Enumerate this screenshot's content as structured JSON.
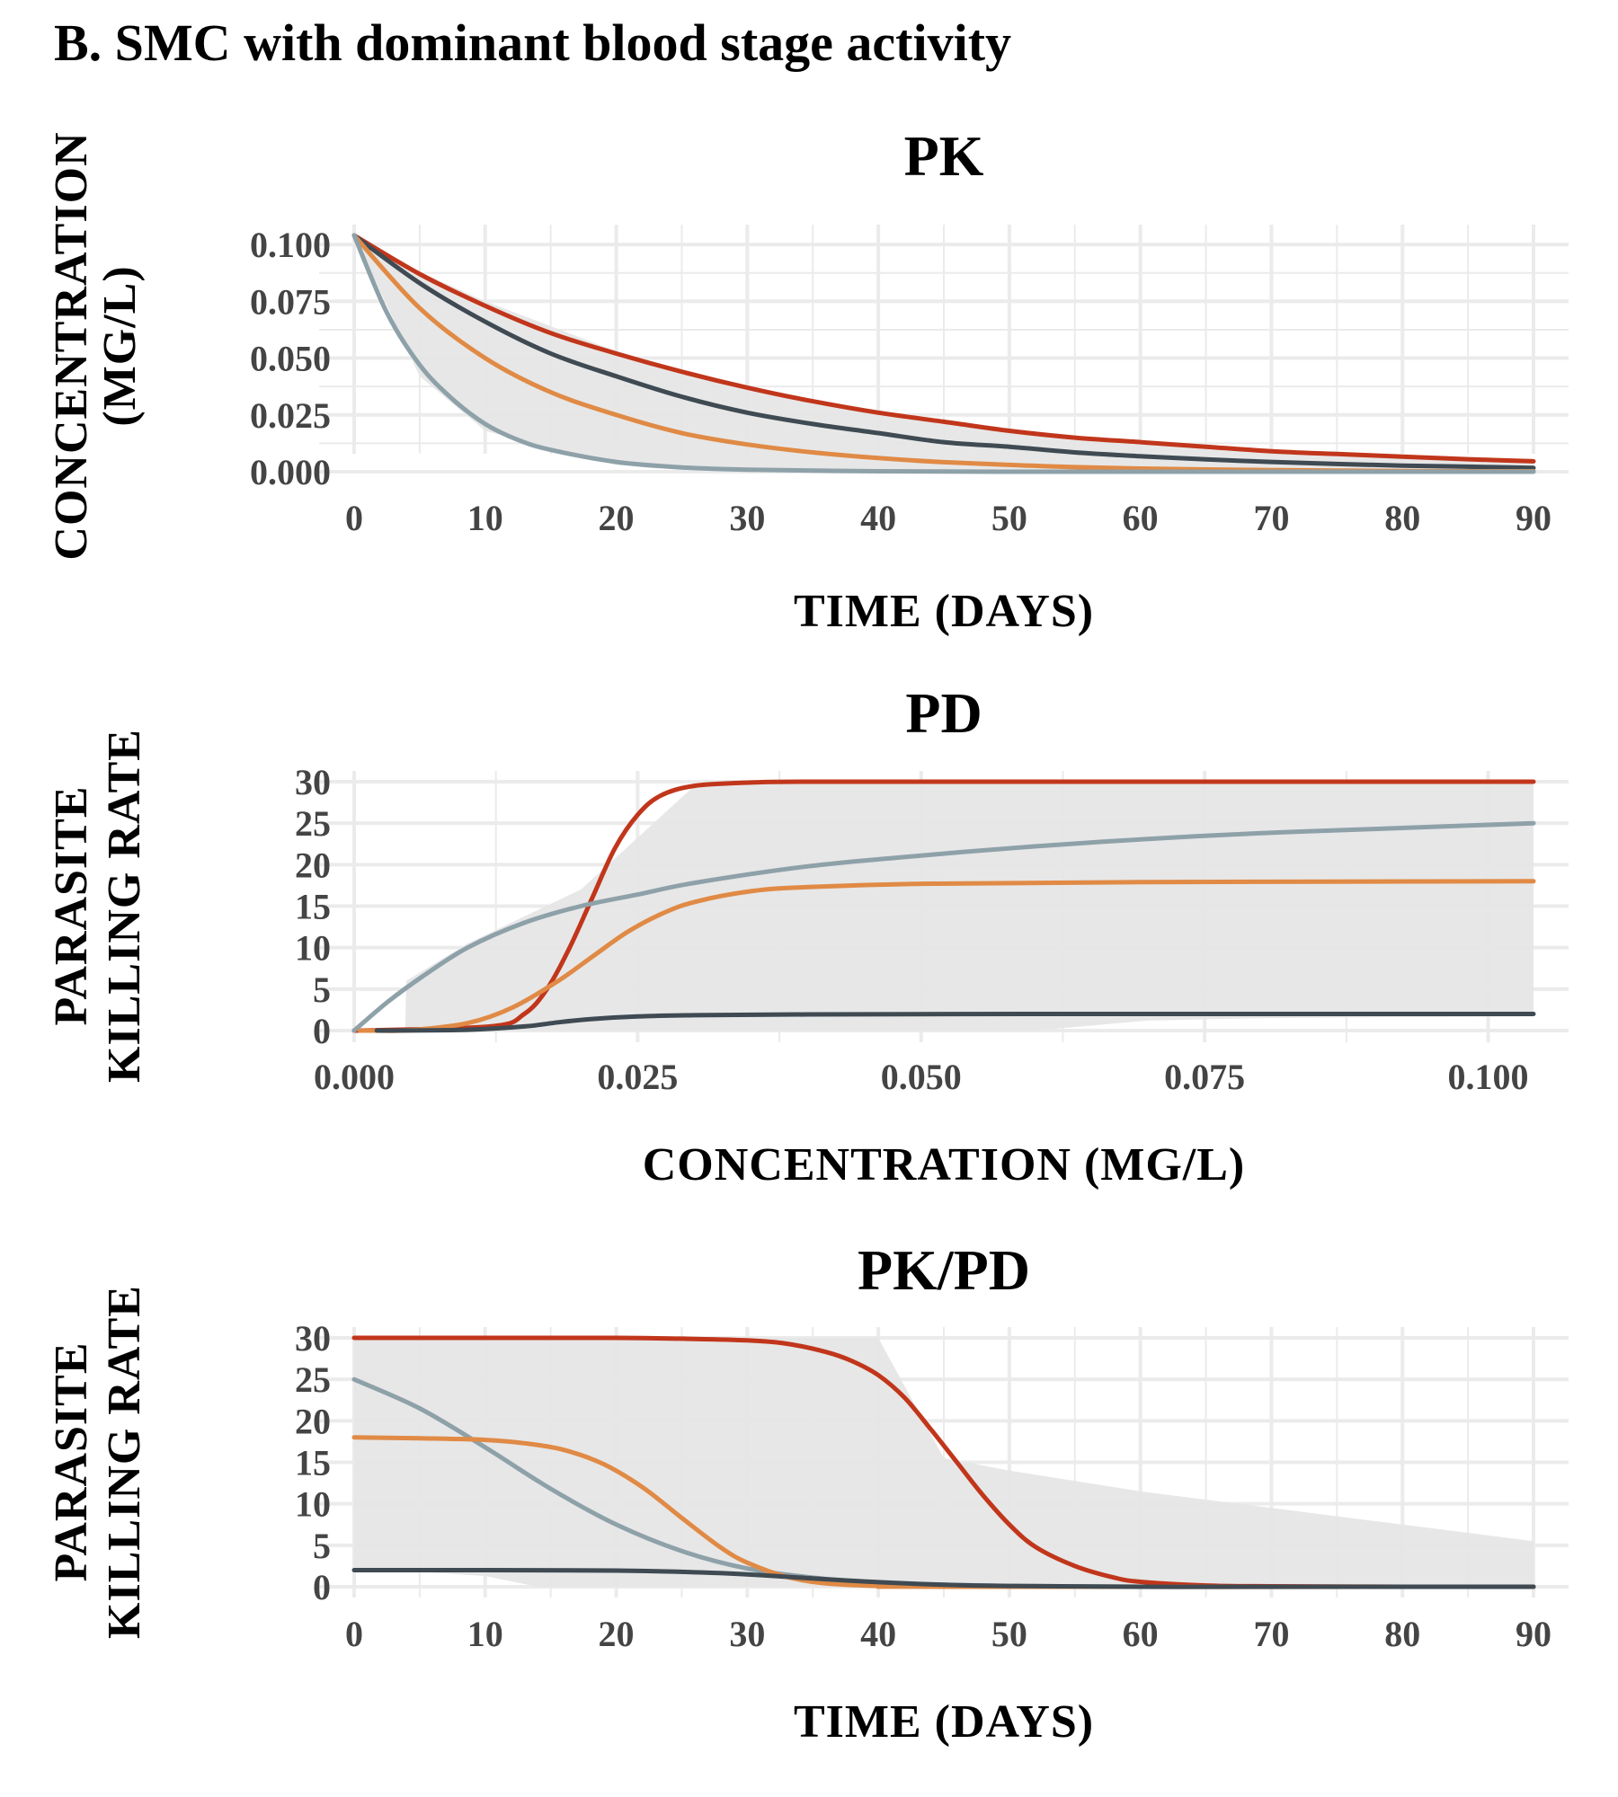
{
  "title": "B. SMC with dominant blood stage activity",
  "colors": {
    "red": "#c1361b",
    "orange": "#e08a45",
    "dark": "#3f4a52",
    "gray_blue": "#8ea1a9",
    "ribbon": "#e6e6e6"
  },
  "chart_data": [
    {
      "id": "pk",
      "type": "line",
      "title": "PK",
      "xlabel": "TIME  (DAYS)",
      "ylabel": [
        "CONCENTRATION",
        "(MG/L)"
      ],
      "xlim": [
        0,
        90
      ],
      "ylim": [
        0,
        0.104
      ],
      "xticks": [
        0,
        10,
        20,
        30,
        40,
        50,
        60,
        70,
        80,
        90
      ],
      "xtick_labels": [
        "0",
        "10",
        "20",
        "30",
        "40",
        "50",
        "60",
        "70",
        "80",
        "90"
      ],
      "yticks": [
        0,
        0.025,
        0.05,
        0.075,
        0.1
      ],
      "ytick_labels": [
        "0.000",
        "0.025",
        "0.050",
        "0.075",
        "0.100"
      ],
      "grid": true,
      "ribbon": {
        "x": [
          0,
          5,
          10,
          20,
          30,
          40,
          50,
          60,
          70,
          80,
          90
        ],
        "lower": [
          0.104,
          0.042,
          0.018,
          0.003,
          0.0007,
          0.0002,
          0.0001,
          0,
          0,
          0,
          0
        ],
        "upper": [
          0.104,
          0.088,
          0.075,
          0.053,
          0.037,
          0.026,
          0.018,
          0.013,
          0.009,
          0.006,
          0.004
        ]
      },
      "series": [
        {
          "color_key": "red",
          "x": [
            0,
            5,
            10,
            15,
            20,
            25,
            30,
            35,
            40,
            45,
            50,
            55,
            60,
            65,
            70,
            75,
            80,
            85,
            90
          ],
          "y": [
            0.104,
            0.087,
            0.073,
            0.061,
            0.052,
            0.044,
            0.037,
            0.031,
            0.026,
            0.022,
            0.018,
            0.015,
            0.013,
            0.011,
            0.009,
            0.0078,
            0.0066,
            0.0055,
            0.0046
          ]
        },
        {
          "color_key": "dark",
          "x": [
            0,
            5,
            10,
            15,
            20,
            25,
            30,
            35,
            40,
            45,
            50,
            55,
            60,
            65,
            70,
            75,
            80,
            85,
            90
          ],
          "y": [
            0.104,
            0.083,
            0.066,
            0.052,
            0.042,
            0.033,
            0.026,
            0.021,
            0.017,
            0.013,
            0.011,
            0.0085,
            0.0068,
            0.0054,
            0.0043,
            0.0034,
            0.0027,
            0.0022,
            0.0017
          ]
        },
        {
          "color_key": "orange",
          "x": [
            0,
            5,
            10,
            15,
            20,
            25,
            30,
            35,
            40,
            45,
            50,
            55,
            60,
            65,
            70,
            75,
            80,
            85,
            90
          ],
          "y": [
            0.104,
            0.072,
            0.05,
            0.035,
            0.025,
            0.017,
            0.012,
            0.0085,
            0.006,
            0.0042,
            0.003,
            0.002,
            0.0014,
            0.001,
            0.0007,
            0.0005,
            0.0003,
            0.0002,
            0.0002
          ]
        },
        {
          "color_key": "gray_blue",
          "x": [
            0,
            2.5,
            5,
            7.5,
            10,
            12.5,
            15,
            20,
            25,
            30,
            40,
            50,
            60,
            70,
            80,
            90
          ],
          "y": [
            0.104,
            0.07,
            0.047,
            0.032,
            0.021,
            0.014,
            0.0096,
            0.0043,
            0.0019,
            0.0009,
            0.0002,
            0,
            0,
            0,
            0,
            0
          ]
        }
      ]
    },
    {
      "id": "pd",
      "type": "line",
      "title": "PD",
      "xlabel": "CONCENTRATION  (MG/L)",
      "ylabel": [
        "PARASITE",
        "KILLING  RATE"
      ],
      "xlim": [
        0,
        0.104
      ],
      "ylim": [
        0,
        30
      ],
      "xticks": [
        0,
        0.025,
        0.05,
        0.075,
        0.1
      ],
      "xtick_labels": [
        "0.000",
        "0.025",
        "0.050",
        "0.075",
        "0.100"
      ],
      "yticks": [
        0,
        5,
        10,
        15,
        20,
        25,
        30
      ],
      "ytick_labels": [
        "0",
        "5",
        "10",
        "15",
        "20",
        "25",
        "30"
      ],
      "grid": true,
      "ribbon": {
        "x": [
          0.0045,
          0.0046,
          0.01,
          0.02,
          0.03,
          0.04,
          0.05,
          0.06,
          0.07,
          0.08,
          0.09,
          0.104
        ],
        "lower": [
          0,
          0,
          0,
          0,
          0,
          0,
          0,
          0,
          1.2,
          1.5,
          1.6,
          1.7
        ],
        "upper": [
          0,
          6,
          10.5,
          17,
          29.5,
          30,
          30,
          30,
          30,
          30,
          30,
          30
        ]
      },
      "series": [
        {
          "color_key": "red",
          "x": [
            0,
            0.012,
            0.015,
            0.017,
            0.019,
            0.021,
            0.023,
            0.025,
            0.027,
            0.03,
            0.035,
            0.04,
            0.06,
            0.08,
            0.104
          ],
          "y": [
            0,
            0.5,
            2,
            5,
            10,
            16,
            22,
            26,
            28.3,
            29.5,
            29.9,
            30,
            30,
            30,
            30
          ]
        },
        {
          "color_key": "gray_blue",
          "x": [
            0,
            0.003,
            0.006,
            0.01,
            0.015,
            0.02,
            0.025,
            0.03,
            0.04,
            0.05,
            0.06,
            0.07,
            0.08,
            0.09,
            0.104
          ],
          "y": [
            0,
            3.5,
            6.5,
            10,
            13,
            15,
            16.4,
            17.8,
            19.8,
            21.1,
            22.2,
            23.1,
            23.8,
            24.3,
            25
          ]
        },
        {
          "color_key": "orange",
          "x": [
            0.0005,
            0.002,
            0.005,
            0.01,
            0.014,
            0.018,
            0.021,
            0.024,
            0.027,
            0.03,
            0.035,
            0.04,
            0.05,
            0.07,
            0.104
          ],
          "y": [
            0,
            0,
            0.05,
            0.9,
            2.8,
            6,
            8.9,
            11.8,
            14,
            15.5,
            16.8,
            17.3,
            17.7,
            17.9,
            18
          ]
        },
        {
          "color_key": "dark",
          "x": [
            0.002,
            0.01,
            0.015,
            0.018,
            0.021,
            0.025,
            0.03,
            0.04,
            0.06,
            0.08,
            0.104
          ],
          "y": [
            0,
            0.1,
            0.5,
            1,
            1.4,
            1.7,
            1.85,
            1.95,
            2,
            2,
            2
          ]
        }
      ]
    },
    {
      "id": "pkpd",
      "type": "line",
      "title": "PK/PD",
      "xlabel": "TIME  (DAYS)",
      "ylabel": [
        "PARASITE",
        "KILLING  RATE"
      ],
      "xlim": [
        0,
        90
      ],
      "ylim": [
        0,
        30
      ],
      "xticks": [
        0,
        10,
        20,
        30,
        40,
        50,
        60,
        70,
        80,
        90
      ],
      "xtick_labels": [
        "0",
        "10",
        "20",
        "30",
        "40",
        "50",
        "60",
        "70",
        "80",
        "90"
      ],
      "yticks": [
        0,
        5,
        10,
        15,
        20,
        25,
        30
      ],
      "ytick_labels": [
        "0",
        "5",
        "10",
        "15",
        "20",
        "25",
        "30"
      ],
      "grid": true,
      "ribbon": {
        "x": [
          0,
          5,
          10,
          14,
          20,
          30,
          40,
          45,
          50,
          60,
          70,
          80,
          90
        ],
        "lower": [
          2,
          1.8,
          1.3,
          0,
          0,
          0,
          0,
          0,
          0,
          0,
          0,
          0,
          0
        ],
        "upper": [
          30,
          30,
          30,
          30,
          30,
          30,
          30,
          15.5,
          14,
          11.5,
          9.5,
          7.5,
          5.5
        ]
      },
      "series": [
        {
          "color_key": "red",
          "x": [
            0,
            10,
            20,
            25,
            30,
            33,
            36,
            38,
            40,
            42,
            44,
            46,
            48,
            50,
            52,
            55,
            58,
            60,
            65,
            70,
            80,
            90
          ],
          "y": [
            30,
            30,
            30,
            29.9,
            29.7,
            29.3,
            28.3,
            27.2,
            25.5,
            22.8,
            19,
            15,
            11,
            7.5,
            4.8,
            2.5,
            1.1,
            0.6,
            0.15,
            0.05,
            0,
            0
          ]
        },
        {
          "color_key": "gray_blue",
          "x": [
            0,
            5,
            10,
            15,
            20,
            25,
            30,
            35,
            40,
            45,
            50,
            60,
            70,
            80,
            90
          ],
          "y": [
            25,
            21.5,
            16.8,
            11.8,
            7.5,
            4.3,
            2.2,
            1.1,
            0.5,
            0.25,
            0.1,
            0,
            0,
            0,
            0
          ]
        },
        {
          "color_key": "orange",
          "x": [
            0,
            5,
            10,
            13,
            16,
            19,
            22,
            25,
            28,
            30,
            33,
            36,
            40,
            45,
            90
          ],
          "y": [
            18,
            17.9,
            17.7,
            17.3,
            16.5,
            14.8,
            12,
            8.3,
            4.7,
            2.9,
            1.2,
            0.4,
            0.1,
            0,
            0
          ]
        },
        {
          "color_key": "dark",
          "x": [
            0,
            10,
            20,
            25,
            30,
            35,
            40,
            45,
            50,
            60,
            70,
            90
          ],
          "y": [
            2,
            2,
            1.95,
            1.8,
            1.5,
            1.0,
            0.55,
            0.25,
            0.1,
            0,
            0,
            0
          ]
        }
      ]
    }
  ]
}
